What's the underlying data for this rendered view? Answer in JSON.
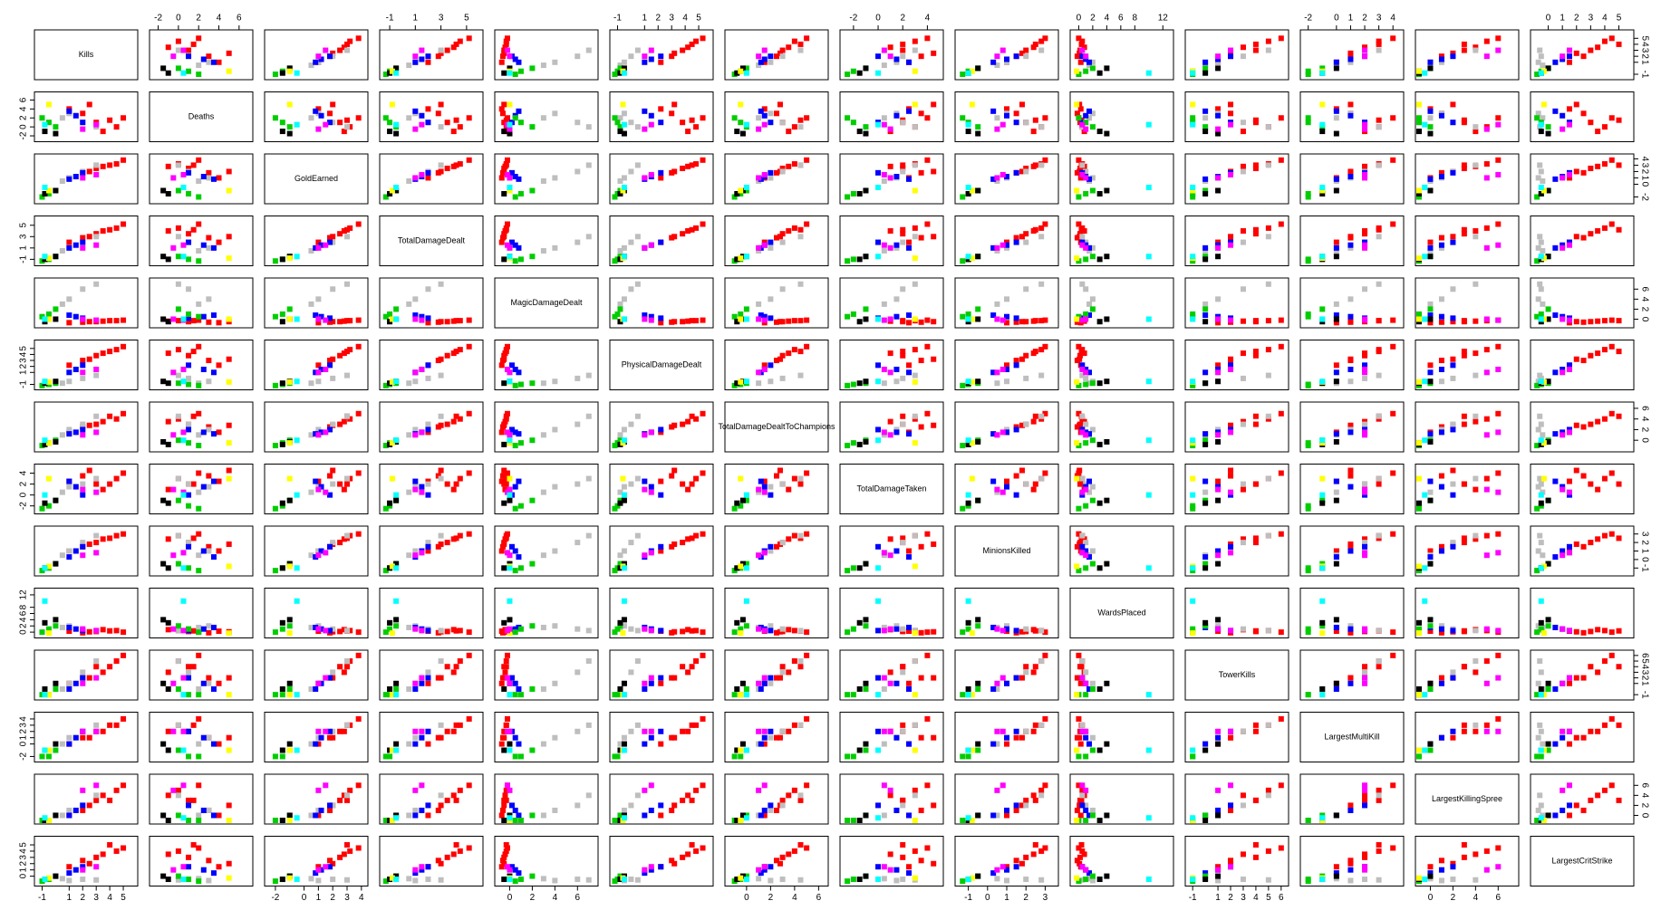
{
  "chart_data": {
    "type": "scatter_matrix",
    "point_colors": [
      "#ff0000",
      "#ff0000",
      "#ff0000",
      "#ff0000",
      "#ff0000",
      "#ff0000",
      "#ff0000",
      "#ff0000",
      "#bebebe",
      "#bebebe",
      "#bebebe",
      "#bebebe",
      "#0000ff",
      "#0000ff",
      "#0000ff",
      "#00cd00",
      "#00cd00",
      "#00cd00",
      "#000000",
      "#000000",
      "#ffff00",
      "#ff00ff",
      "#ff00ff",
      "#00ffff"
    ],
    "variables": [
      {
        "name": "Kills",
        "lim": [
          -1.3,
          5.8
        ],
        "ticks": [
          -1,
          1,
          2,
          3,
          4,
          5
        ],
        "values": [
          3,
          4.5,
          2,
          5,
          1,
          3.5,
          2.5,
          4,
          2,
          3,
          1,
          0.5,
          1.5,
          2,
          1,
          -0.5,
          0,
          -1,
          -0.8,
          0,
          -0.5,
          2,
          3,
          -0.8
        ]
      },
      {
        "name": "Deaths",
        "lim": [
          -2.5,
          7
        ],
        "ticks": [
          -2,
          0,
          2,
          4,
          6
        ],
        "values": [
          1,
          0,
          3,
          2,
          4,
          -1,
          5,
          1.5,
          1,
          0,
          3,
          2,
          2.5,
          1,
          3.5,
          1,
          0,
          2,
          -1,
          -1.5,
          5,
          -0.5,
          0.5,
          0.5
        ]
      },
      {
        "name": "GoldEarned",
        "lim": [
          -2.5,
          4.2
        ],
        "ticks": [
          -2,
          0,
          1,
          2,
          3,
          4
        ],
        "values": [
          2.5,
          3.2,
          1.8,
          3.8,
          1,
          2.8,
          2,
          3,
          2,
          3,
          1,
          0.5,
          1.2,
          1.8,
          0.8,
          -1.5,
          -1,
          -2,
          -1.5,
          -1,
          -1,
          1,
          1.5,
          -0.5
        ]
      },
      {
        "name": "TotalDamageDealt",
        "lim": [
          -1.5,
          6
        ],
        "ticks": [
          -1,
          1,
          3,
          5
        ],
        "values": [
          3.5,
          4.5,
          2.8,
          5.2,
          2,
          4,
          3,
          4.2,
          2,
          3,
          1,
          0.5,
          1.5,
          2,
          1,
          -1,
          -0.5,
          -1.3,
          -1,
          -0.5,
          -0.8,
          1,
          1.5,
          -0.5
        ]
      },
      {
        "name": "MagicDamageDealt",
        "lim": [
          -1,
          7.5
        ],
        "ticks": [
          0,
          2,
          4,
          6
        ],
        "values": [
          -0.5,
          -0.3,
          -0.6,
          -0.2,
          -0.7,
          -0.4,
          -0.5,
          -0.3,
          6,
          7,
          4,
          3,
          0.5,
          0.2,
          0.8,
          1,
          2,
          0.5,
          -0.5,
          0,
          0,
          0,
          -0.2,
          0
        ]
      },
      {
        "name": "PhysicalDamageDealt",
        "lim": [
          -1.3,
          5.8
        ],
        "ticks": [
          -1,
          1,
          2,
          3,
          4,
          5
        ],
        "values": [
          3.8,
          4.8,
          3,
          5.3,
          2.2,
          4.2,
          3.2,
          4.5,
          0,
          0.5,
          -0.5,
          -0.8,
          1.5,
          2.2,
          1,
          -1,
          -0.8,
          -1.2,
          -0.8,
          -0.5,
          -0.6,
          1,
          1.5,
          -0.5
        ]
      },
      {
        "name": "TotalDamageDealtToChampions",
        "lim": [
          -1.5,
          6.5
        ],
        "ticks": [
          0,
          2,
          4,
          6
        ],
        "values": [
          3,
          4,
          2.5,
          5,
          1.5,
          3.5,
          2.8,
          4.5,
          3,
          4.5,
          2,
          1,
          1.5,
          2,
          1.2,
          -0.5,
          0,
          -1,
          -0.8,
          -0.3,
          -0.5,
          1,
          1.5,
          0
        ]
      },
      {
        "name": "TotalDamageTaken",
        "lim": [
          -2.8,
          5
        ],
        "ticks": [
          -2,
          0,
          2,
          4
        ],
        "values": [
          2,
          3,
          3.5,
          4,
          2.5,
          1,
          4.5,
          2,
          2,
          3,
          1.5,
          0.5,
          1.5,
          0,
          2.5,
          -2,
          -1,
          -2.5,
          -1.5,
          -1,
          3,
          1,
          0.5,
          0
        ]
      },
      {
        "name": "MinionsKilled",
        "lim": [
          -1.5,
          3.5
        ],
        "ticks": [
          -1,
          0,
          1,
          2,
          3
        ],
        "values": [
          2,
          2.8,
          1.5,
          3,
          1,
          2.4,
          1.8,
          2.5,
          2,
          2.8,
          1,
          0.5,
          1,
          1.5,
          0.3,
          -1,
          -0.5,
          -1.3,
          -1,
          -0.5,
          -0.8,
          0.5,
          0.8,
          -1
        ]
      },
      {
        "name": "WardsPlaced",
        "lim": [
          -0.7,
          13
        ],
        "ticks": [
          0,
          2,
          4,
          6,
          8,
          12
        ],
        "values": [
          0.2,
          0.5,
          -0.2,
          0,
          0.3,
          0.8,
          0.1,
          0.4,
          1,
          0.5,
          2,
          1.5,
          1,
          0.5,
          1.5,
          1,
          2,
          0,
          3,
          4,
          -0.3,
          1,
          0.5,
          10
        ]
      },
      {
        "name": "TowerKills",
        "lim": [
          -1.3,
          6.3
        ],
        "ticks": [
          -1,
          1,
          2,
          3,
          4,
          5,
          6
        ],
        "values": [
          4,
          5,
          2,
          6,
          1,
          3,
          2,
          4,
          3,
          5,
          1,
          0,
          1,
          2,
          0,
          -1,
          0,
          -1,
          0,
          1,
          -1,
          1,
          2,
          -1
        ]
      },
      {
        "name": "LargestMultiKill",
        "lim": [
          -2.3,
          4.5
        ],
        "ticks": [
          -2,
          0,
          1,
          2,
          3,
          4
        ],
        "values": [
          2,
          3,
          1,
          4,
          0,
          2,
          1,
          3,
          2,
          3,
          1,
          0,
          1,
          2,
          0,
          -2,
          -1,
          -2,
          -1,
          0,
          -1,
          2,
          2,
          -1
        ]
      },
      {
        "name": "LargestKillingSpree",
        "lim": [
          -1,
          7.5
        ],
        "ticks": [
          0,
          2,
          4,
          6
        ],
        "values": [
          3,
          5,
          1,
          6,
          0,
          4,
          2,
          3,
          2,
          4,
          1,
          0,
          1,
          2,
          0,
          -1,
          0,
          -1,
          -1,
          0,
          -1,
          5,
          6,
          -0.5
        ]
      },
      {
        "name": "LargestCritStrike",
        "lim": [
          -1,
          5.8
        ],
        "ticks": [
          0,
          1,
          2,
          3,
          4,
          5
        ],
        "values": [
          3,
          4,
          2.5,
          4.5,
          1.5,
          3.5,
          2,
          5,
          -0.5,
          -0.6,
          -0.7,
          -0.4,
          1,
          1.5,
          0.5,
          -0.5,
          0,
          -0.8,
          -0.5,
          0,
          -0.3,
          1,
          1.5,
          -0.5
        ]
      }
    ]
  }
}
